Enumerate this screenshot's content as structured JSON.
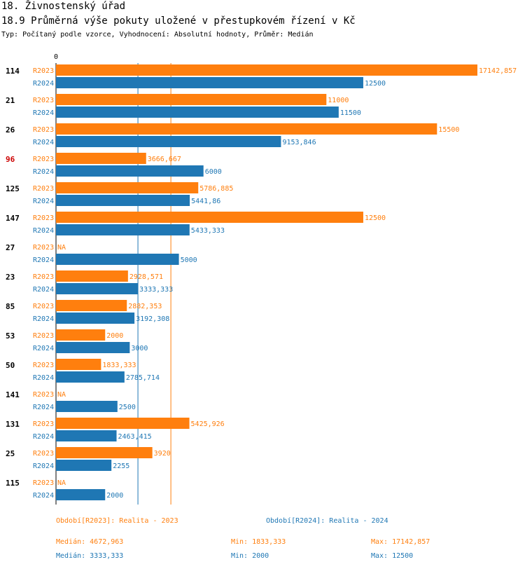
{
  "header": {
    "section": "18. Živnostenský úřad",
    "title": "18.9 Průměrná výše pokuty uložené v přestupkovém řízení v Kč",
    "subtitle": "Typ: Počítaný podle vzorce, Vyhodnocení: Absolutní hodnoty, Průměr: Medián"
  },
  "colors": {
    "r2023": "#ff7f0e",
    "r2024": "#1f77b4",
    "highlight": "#cc0000"
  },
  "chart_data": {
    "type": "bar",
    "orientation": "horizontal",
    "axis_zero_label": "0",
    "xlim": [
      0,
      17142.857
    ],
    "categories": [
      "114",
      "21",
      "26",
      "96",
      "125",
      "147",
      "27",
      "23",
      "85",
      "53",
      "50",
      "141",
      "131",
      "25",
      "115"
    ],
    "highlighted_category": "96",
    "series": [
      {
        "name": "R2023",
        "values": [
          17142.857,
          11000,
          15500,
          3666.667,
          5786.885,
          12500,
          null,
          2928.571,
          2882.353,
          2000,
          1833.333,
          null,
          5425.926,
          3920,
          null
        ],
        "labels": [
          "17142,857",
          "11000",
          "15500",
          "3666,667",
          "5786,885",
          "12500",
          "NA",
          "2928,571",
          "2882,353",
          "2000",
          "1833,333",
          "NA",
          "5425,926",
          "3920",
          "NA"
        ]
      },
      {
        "name": "R2024",
        "values": [
          12500,
          11500,
          9153.846,
          6000,
          5441.86,
          5433.333,
          5000,
          3333.333,
          3192.308,
          3000,
          2785.714,
          2500,
          2463.415,
          2255,
          2000
        ],
        "labels": [
          "12500",
          "11500",
          "9153,846",
          "6000",
          "5441,86",
          "5433,333",
          "5000",
          "3333,333",
          "3192,308",
          "3000",
          "2785,714",
          "2500",
          "2463,415",
          "2255",
          "2000"
        ]
      }
    ],
    "reference_lines": [
      {
        "series": "R2024",
        "value": 3333.333
      },
      {
        "series": "R2023",
        "value": 4672.963
      }
    ]
  },
  "legend": {
    "r2023": "Období[R2023]: Realita - 2023",
    "r2024": "Období[R2024]: Realita - 2024"
  },
  "stats": {
    "r2023": {
      "median": "Medián: 4672,963",
      "min": "Min: 1833,333",
      "max": "Max: 17142,857"
    },
    "r2024": {
      "median": "Medián: 3333,333",
      "min": "Min: 2000",
      "max": "Max: 12500"
    }
  }
}
